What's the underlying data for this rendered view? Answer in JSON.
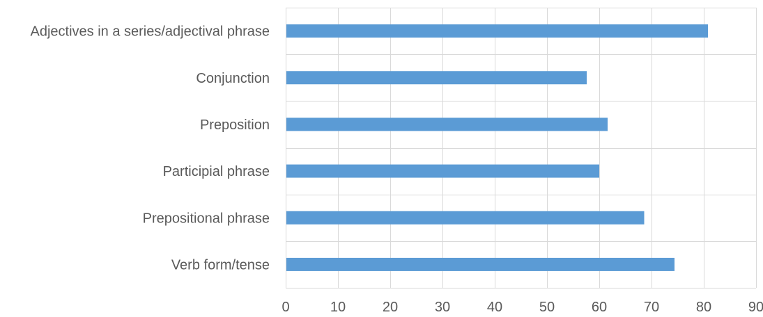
{
  "chart_data": {
    "type": "bar",
    "orientation": "horizontal",
    "title": "",
    "xlabel": "",
    "ylabel": "",
    "categories": [
      "Adjectives in a series/adjectival phrase",
      "Conjunction",
      "Preposition",
      "Participial phrase",
      "Prepositional phrase",
      "Verb form/tense"
    ],
    "values": [
      80.8,
      57.6,
      61.6,
      60.0,
      68.6,
      74.4
    ],
    "xlim": [
      0,
      90
    ],
    "xticks": [
      0,
      10,
      20,
      30,
      40,
      50,
      60,
      70,
      80,
      90
    ],
    "grid": true,
    "legend": "none",
    "bar_color": "#5b9bd5",
    "grid_color": "#d9d9d9",
    "label_color": "#595959"
  }
}
